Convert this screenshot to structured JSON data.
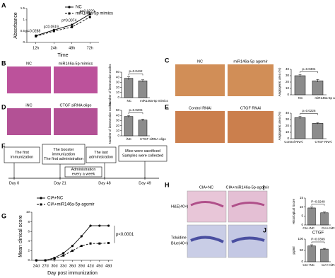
{
  "chart_data": [
    {
      "type": "line",
      "panel": "A",
      "ylabel": "Absorbance",
      "xlabel": "Time",
      "categories": [
        "12h",
        "24h",
        "48h",
        "72h"
      ],
      "series": [
        {
          "name": "NC",
          "color": "#000000",
          "dash": false,
          "values": [
            0.3,
            0.55,
            0.78,
            1.25
          ]
        },
        {
          "name": "miR146a-5p mimics",
          "color": "#000000",
          "dash": true,
          "values": [
            0.27,
            0.5,
            0.68,
            1.12
          ]
        }
      ],
      "ylim": [
        0,
        1.5
      ],
      "yticks": [
        0,
        0.5,
        1,
        1.5
      ],
      "annotations": [
        "p=0.0288",
        "p=0.0519",
        "p=0.0074",
        "p=0.0229"
      ]
    },
    {
      "type": "bar",
      "panel": "B",
      "image_labels": [
        "NC",
        "miR146a-5p mimics"
      ],
      "ylabel": "Number of intersection nodes",
      "categories": [
        "NC",
        "miR146a-5p mimics"
      ],
      "values": [
        38,
        33
      ],
      "errors": [
        3,
        2
      ],
      "color": "#8c8c8c",
      "ylim": [
        0,
        50
      ],
      "yticks": [
        0,
        10,
        20,
        30,
        40,
        50
      ],
      "annotation": "p=0.0442"
    },
    {
      "type": "bar",
      "panel": "C",
      "image_labels": [
        "NC",
        "miR146a-5p agomir"
      ],
      "ylabel": "Angiogenic area (%)",
      "categories": [
        "NC",
        "miR146a-5p agomir"
      ],
      "values": [
        30,
        22
      ],
      "errors": [
        2,
        2
      ],
      "color": "#8c8c8c",
      "ylim": [
        0,
        40
      ],
      "yticks": [
        0,
        10,
        20,
        30,
        40
      ],
      "annotation": "p=0.0304"
    },
    {
      "type": "bar",
      "panel": "D",
      "image_labels": [
        "iNC",
        "CTGF siRNA oligo"
      ],
      "ylabel": "Number of intersection nodes",
      "categories": [
        "iNC",
        "CTGF siRNA oligo"
      ],
      "values": [
        38,
        31
      ],
      "errors": [
        2,
        2
      ],
      "color": "#8c8c8c",
      "ylim": [
        0,
        50
      ],
      "yticks": [
        0,
        10,
        20,
        30,
        40,
        50
      ],
      "annotation": "p=0.0206"
    },
    {
      "type": "bar",
      "panel": "E",
      "image_labels": [
        "Control RNAi",
        "CTGF RNAi"
      ],
      "ylabel": "Angiogenic area (%)",
      "categories": [
        "Control RNAi",
        "CTGF RNAi"
      ],
      "values": [
        33,
        24
      ],
      "errors": [
        2,
        1
      ],
      "color": "#8c8c8c",
      "ylim": [
        0,
        40
      ],
      "yticks": [
        0,
        10,
        20,
        30,
        40
      ],
      "annotation": "p=0.0226"
    },
    {
      "type": "line",
      "panel": "G",
      "ylabel": "Mean clinical score",
      "xlabel": "Day post immunization",
      "categories": [
        "24d",
        "27d",
        "30d",
        "33d",
        "36d",
        "39d",
        "42d",
        "45d",
        "48d"
      ],
      "series": [
        {
          "name": "CIA+NC",
          "color": "#000000",
          "dash": false,
          "values": [
            0,
            0,
            0.5,
            1.5,
            3,
            5,
            7.2,
            7.2,
            7.2
          ]
        },
        {
          "name": "CIA+miR146a-5p-agomir",
          "color": "#000000",
          "dash": true,
          "values": [
            0,
            0,
            0.3,
            1,
            2,
            3,
            3.5,
            3.5,
            3.6
          ]
        }
      ],
      "ylim": [
        0,
        10
      ],
      "yticks": [
        0,
        2,
        4,
        6,
        8,
        10
      ],
      "annotations": [
        "p<0.0001"
      ]
    },
    {
      "type": "bar",
      "panel": "I",
      "ylabel": "Histological Score",
      "categories": [
        "CIA+NC",
        "CIA+miR146a-5p-agomir"
      ],
      "values": [
        9.5,
        6.8
      ],
      "errors": [
        0.5,
        0.4
      ],
      "color": "#8c8c8c",
      "ylim": [
        0,
        15
      ],
      "yticks": [
        0,
        5,
        10,
        15
      ],
      "annotation": "P=0.0249"
    },
    {
      "type": "bar",
      "panel": "J",
      "title": "CTGF",
      "ylabel": "pg/ml",
      "categories": [
        "CIA+NC",
        "CIA+miR146a-5p-agomir"
      ],
      "values": [
        70,
        56
      ],
      "errors": [
        5,
        3
      ],
      "color": "#8c8c8c",
      "ylim": [
        0,
        100
      ],
      "yticks": [
        0,
        50,
        100
      ],
      "annotation": "P=0.0399"
    }
  ],
  "timeline": {
    "panel": "F",
    "boxes": [
      [
        "The first",
        "immunization"
      ],
      [
        "The booster",
        "immunization",
        "The first administration"
      ],
      [
        "Administration",
        "every a week"
      ],
      [
        "The last",
        "administration"
      ],
      [
        "Mice were sacrificed",
        "Samples were collected"
      ]
    ],
    "days": [
      "Day 0",
      "Day 21",
      "Day 48",
      "Day 49"
    ]
  },
  "histology": {
    "panel": "H",
    "columns": [
      "CIA+NC",
      "CIA+miR146a-5p-agomir"
    ],
    "rows": [
      [
        "H&E(40×)"
      ],
      [
        "Toluidine",
        "Blue(40×)"
      ]
    ]
  }
}
